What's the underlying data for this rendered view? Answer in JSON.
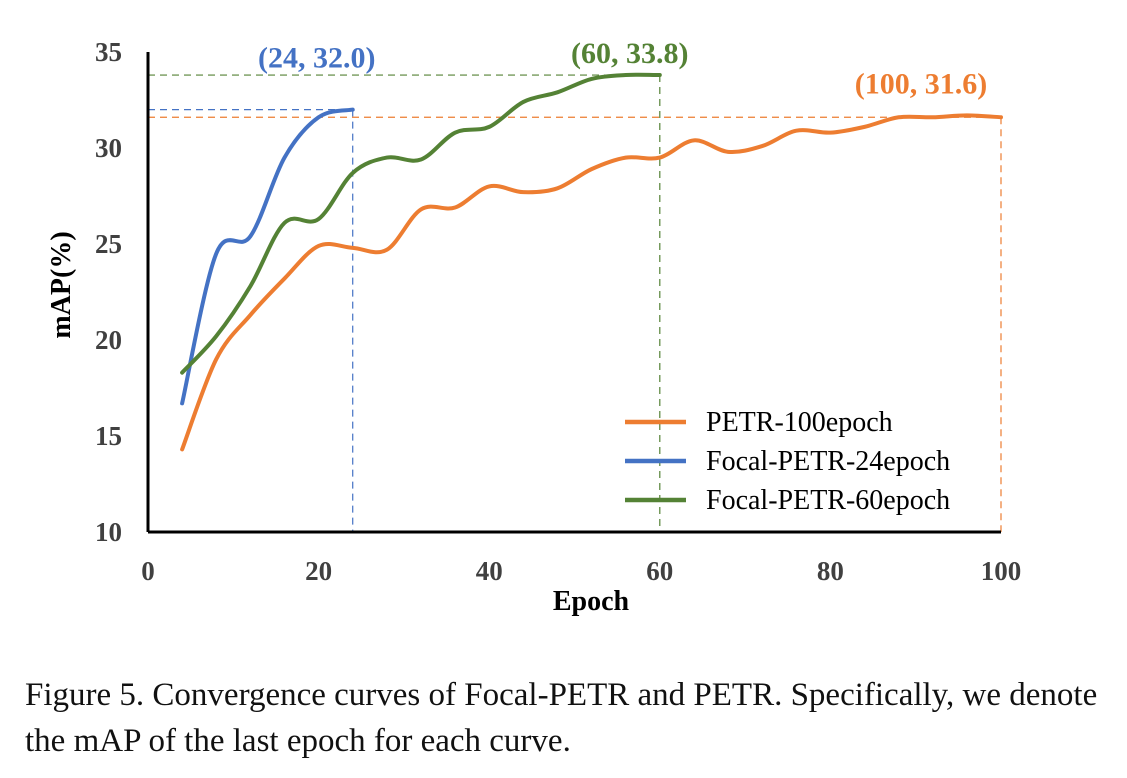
{
  "chart_data": {
    "type": "line",
    "xlabel": "Epoch",
    "ylabel": "mAP(%)",
    "xlim": [
      0,
      100
    ],
    "ylim": [
      10,
      35
    ],
    "xticks": [
      0,
      20,
      40,
      60,
      80,
      100
    ],
    "yticks": [
      10,
      15,
      20,
      25,
      30,
      35
    ],
    "grid": false,
    "legend_placement": "bottom-right",
    "series": [
      {
        "name": "PETR-100epoch",
        "color": "#ED7D31",
        "x": [
          4,
          8,
          12,
          16,
          20,
          24,
          28,
          32,
          36,
          40,
          44,
          48,
          52,
          56,
          60,
          64,
          68,
          72,
          76,
          80,
          84,
          88,
          92,
          96,
          100
        ],
        "y": [
          14.3,
          19.0,
          21.3,
          23.2,
          24.9,
          24.8,
          24.7,
          26.8,
          26.9,
          28.0,
          27.7,
          27.9,
          28.9,
          29.5,
          29.5,
          30.4,
          29.8,
          30.1,
          30.9,
          30.8,
          31.1,
          31.6,
          31.6,
          31.7,
          31.6
        ]
      },
      {
        "name": "Focal-PETR-24epoch",
        "color": "#4472C4",
        "x": [
          4,
          8,
          12,
          16,
          20,
          24
        ],
        "y": [
          16.7,
          24.5,
          25.4,
          29.5,
          31.6,
          32.0
        ]
      },
      {
        "name": "Focal-PETR-60epoch",
        "color": "#548235",
        "x": [
          4,
          8,
          12,
          16,
          20,
          24,
          28,
          32,
          36,
          40,
          44,
          48,
          52,
          56,
          60
        ],
        "y": [
          18.3,
          20.2,
          22.8,
          26.1,
          26.3,
          28.7,
          29.5,
          29.4,
          30.8,
          31.1,
          32.4,
          32.9,
          33.6,
          33.8,
          33.8
        ]
      }
    ],
    "annotations": [
      {
        "text": "(24, 32.0)",
        "x": 24,
        "y": 32.0,
        "color": "#4472C4"
      },
      {
        "text": "(60, 33.8)",
        "x": 60,
        "y": 33.8,
        "color": "#548235"
      },
      {
        "text": "(100, 31.6)",
        "x": 100,
        "y": 31.6,
        "color": "#ED7D31"
      }
    ]
  },
  "caption": "Figure 5. Convergence curves of Focal-PETR and PETR. Specifically, we denote the mAP of the last epoch for each curve."
}
